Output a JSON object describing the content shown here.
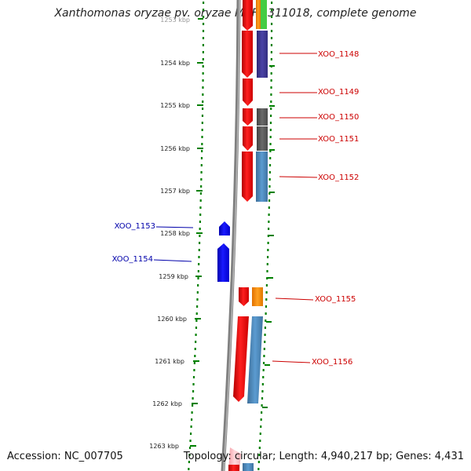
{
  "title": "Xanthomonas oryzae pv. oryzae MAFF 311018, complete genome",
  "footer": {
    "accession": "Accession: NC_007705",
    "summary": "Topology: circular; Length: 4,940,217 bp; Genes: 4,431"
  },
  "colors": {
    "plus_strand_gene": "#ff0000",
    "minus_strand_gene": "#0000ff",
    "ruler_ticks": "#008000",
    "backbone": "#808080",
    "label_plus": "#cc0000",
    "label_minus": "#0000aa"
  },
  "ruler": {
    "unit": "kbp",
    "ticks": [
      "1253 kbp",
      "1254 kbp",
      "1255 kbp",
      "1256 kbp",
      "1257 kbp",
      "1258 kbp",
      "1259 kbp",
      "1260 kbp",
      "1261 kbp",
      "1262 kbp",
      "1263 kbp"
    ]
  },
  "genes": [
    {
      "label": "XOO_1148",
      "strand": "+"
    },
    {
      "label": "XOO_1149",
      "strand": "+"
    },
    {
      "label": "XOO_1150",
      "strand": "+"
    },
    {
      "label": "XOO_1151",
      "strand": "+"
    },
    {
      "label": "XOO_1152",
      "strand": "+"
    },
    {
      "label": "XOO_1153",
      "strand": "-"
    },
    {
      "label": "XOO_1154",
      "strand": "-"
    },
    {
      "label": "XOO_1155",
      "strand": "+"
    },
    {
      "label": "XOO_1156",
      "strand": "+"
    }
  ]
}
